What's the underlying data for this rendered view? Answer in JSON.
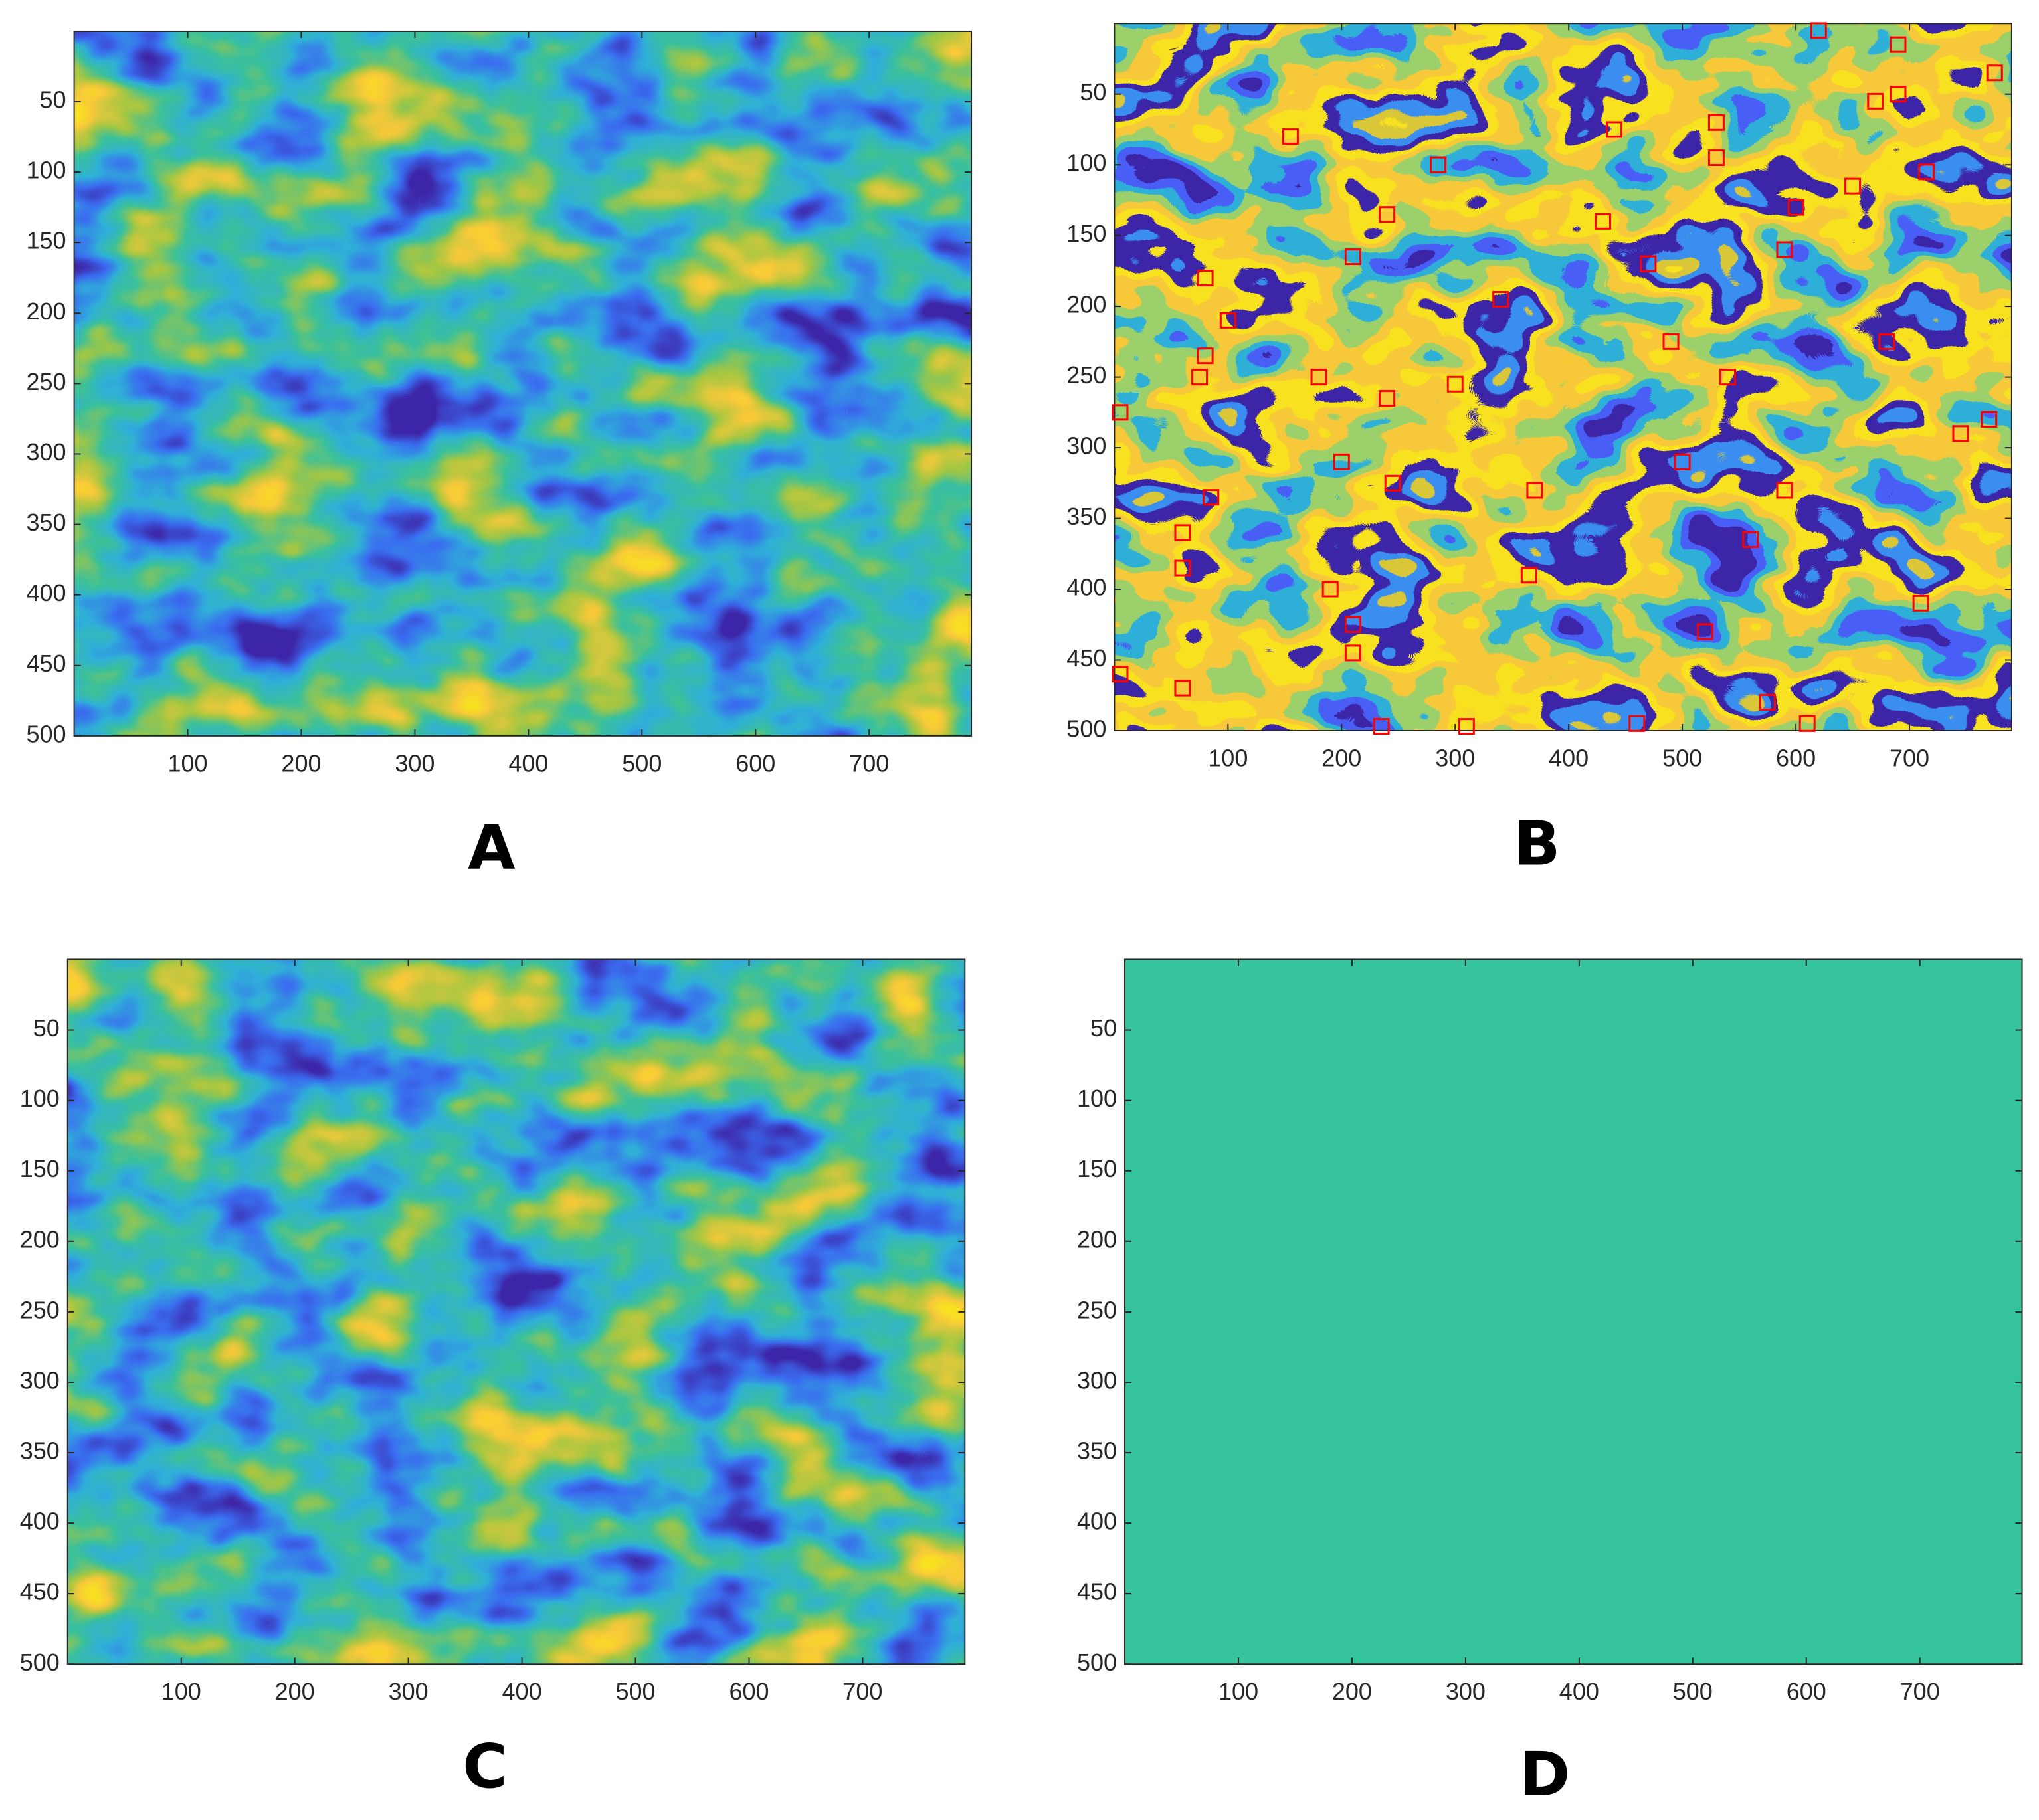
{
  "chart_data": [
    {
      "type": "image",
      "label": "A",
      "xlim": [
        0,
        790
      ],
      "ylim": [
        0,
        500
      ],
      "y_reversed": true,
      "xticks": [
        100,
        200,
        300,
        400,
        500,
        600,
        700
      ],
      "yticks": [
        50,
        100,
        150,
        200,
        250,
        300,
        350,
        400,
        450,
        500
      ],
      "colormap": [
        "#3e26a8",
        "#3a6df0",
        "#2fb0d8",
        "#3cc19a",
        "#a6c742",
        "#f7c93a",
        "#f9e31f"
      ]
    },
    {
      "type": "image",
      "label": "B",
      "xlim": [
        0,
        790
      ],
      "ylim": [
        0,
        500
      ],
      "y_reversed": true,
      "xticks": [
        100,
        200,
        300,
        400,
        500,
        600,
        700
      ],
      "yticks": [
        50,
        100,
        150,
        200,
        250,
        300,
        350,
        400,
        450,
        500
      ],
      "colormap": [
        "#3e26a8",
        "#4a5ef5",
        "#2fb0d8",
        "#9bd06a",
        "#f7c93a",
        "#f9e31f",
        "#3e26a8",
        "#3a8ef0",
        "#d9c83a",
        "#f9e31f"
      ],
      "markers": {
        "color": "#ff0000",
        "x": [
          620,
          690,
          775,
          690,
          670,
          155,
          440,
          530,
          530,
          285,
          715,
          650,
          600,
          240,
          430,
          210,
          470,
          590,
          80,
          100,
          340,
          80,
          490,
          680,
          75,
          180,
          240,
          540,
          300,
          5,
          770,
          745,
          200,
          500,
          245,
          370,
          590,
          85,
          60,
          560,
          60,
          365,
          190,
          210,
          710,
          520,
          210,
          5,
          60,
          460,
          310,
          235,
          610,
          575
        ],
        "y": [
          5,
          15,
          35,
          50,
          55,
          80,
          75,
          70,
          95,
          100,
          105,
          115,
          130,
          135,
          140,
          165,
          170,
          160,
          180,
          210,
          195,
          235,
          225,
          225,
          250,
          250,
          265,
          250,
          255,
          275,
          280,
          290,
          310,
          310,
          325,
          330,
          330,
          335,
          360,
          365,
          385,
          390,
          400,
          425,
          410,
          430,
          445,
          460,
          470,
          495,
          497,
          497,
          495,
          480
        ]
      }
    },
    {
      "type": "image",
      "label": "C",
      "xlim": [
        0,
        790
      ],
      "ylim": [
        0,
        500
      ],
      "y_reversed": true,
      "xticks": [
        100,
        200,
        300,
        400,
        500,
        600,
        700
      ],
      "yticks": [
        50,
        100,
        150,
        200,
        250,
        300,
        350,
        400,
        450,
        500
      ],
      "colormap": [
        "#3e26a8",
        "#3a6df0",
        "#2fb0d8",
        "#3cc19a",
        "#a6c742",
        "#f7c93a",
        "#f9e31f"
      ]
    },
    {
      "type": "image",
      "label": "D",
      "xlim": [
        0,
        790
      ],
      "ylim": [
        0,
        500
      ],
      "y_reversed": true,
      "xticks": [
        100,
        200,
        300,
        400,
        500,
        600,
        700
      ],
      "yticks": [
        50,
        100,
        150,
        200,
        250,
        300,
        350,
        400,
        450,
        500
      ],
      "colormap": [
        "#35c49b"
      ]
    }
  ]
}
